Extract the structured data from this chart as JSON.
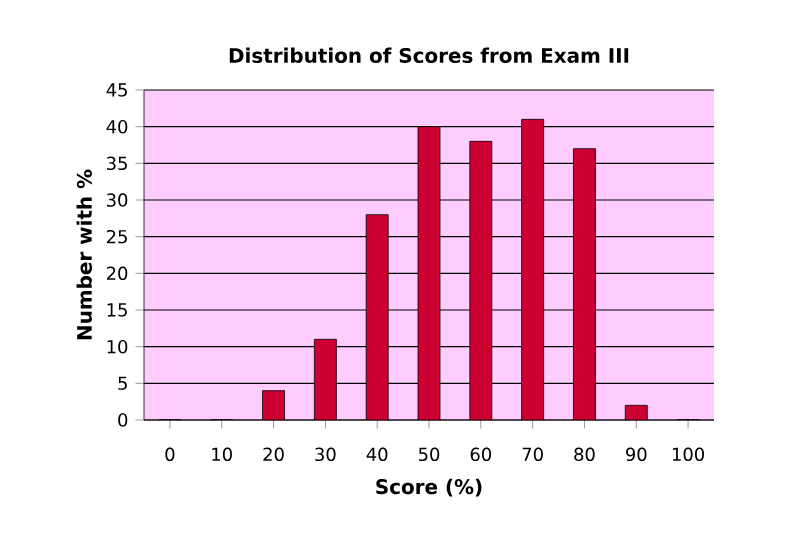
{
  "chart_data": {
    "type": "bar",
    "title": "Distribution of Scores from Exam III",
    "xlabel": "Score (%)",
    "ylabel": "Number with %",
    "categories": [
      "0",
      "10",
      "20",
      "30",
      "40",
      "50",
      "60",
      "70",
      "80",
      "90",
      "100"
    ],
    "values": [
      0,
      0,
      4,
      11,
      28,
      40,
      38,
      41,
      37,
      2,
      0
    ],
    "color": "#cc0033",
    "ylim": [
      0,
      45
    ],
    "yticks": [
      0,
      5,
      10,
      15,
      20,
      25,
      30,
      35,
      40,
      45
    ],
    "grid": "y"
  }
}
